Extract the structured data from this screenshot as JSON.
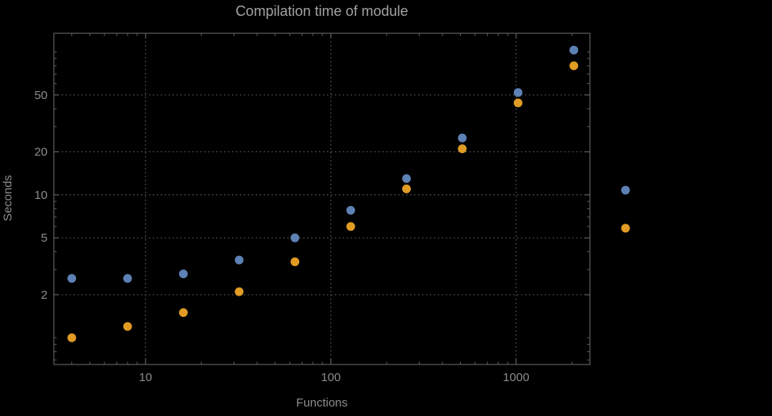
{
  "chart_data": {
    "type": "scatter",
    "title": "Compilation time of module",
    "xlabel": "Functions",
    "ylabel": "Seconds",
    "x_scale": "log",
    "y_scale": "log",
    "xlim": [
      3.2,
      2500
    ],
    "ylim": [
      0.65,
      135
    ],
    "x_major_ticks": [
      10,
      100,
      1000
    ],
    "y_major_ticks": [
      2,
      5,
      10,
      20,
      50
    ],
    "grid": true,
    "x": [
      4,
      8,
      16,
      32,
      64,
      128,
      256,
      512,
      1024,
      2048
    ],
    "series": [
      {
        "name": "series-1",
        "color": "#5e81b5",
        "values": [
          2.6,
          2.6,
          2.8,
          3.5,
          5.0,
          7.8,
          13,
          25,
          52,
          103
        ]
      },
      {
        "name": "series-2",
        "color": "#e19c24",
        "values": [
          1.0,
          1.2,
          1.5,
          2.1,
          3.4,
          6.0,
          11,
          21,
          44,
          80
        ]
      }
    ],
    "legend_position": "right",
    "background_color": "#000000",
    "frame_color": "#5c5c5c",
    "grid_color": "#5c5c5c",
    "tick_label_color": "#8c8c8c",
    "title_color": "#a3a3a3",
    "axis_label_color": "#8c8c8c",
    "marker_radius": 5.5
  }
}
